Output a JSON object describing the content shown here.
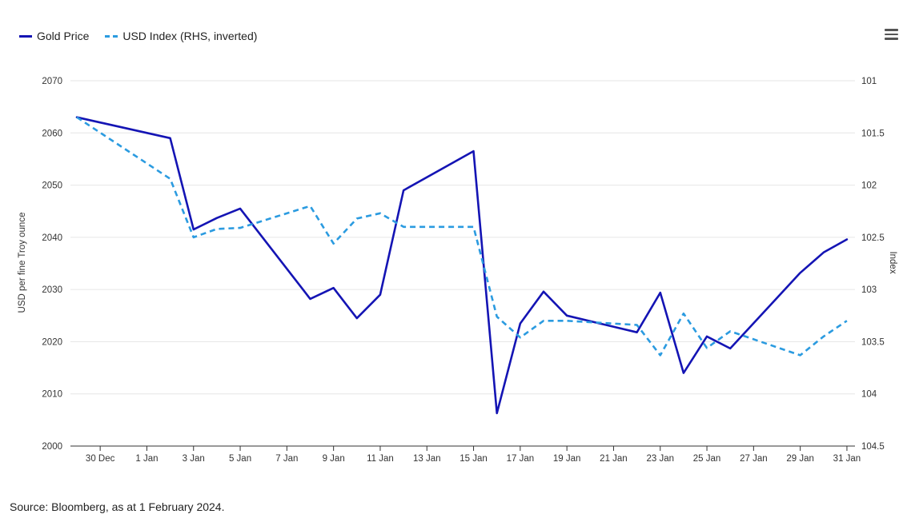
{
  "legend": {
    "gold_label": "Gold Price",
    "usd_label": "USD Index (RHS, inverted)"
  },
  "source_text": "Source: Bloomberg, as at 1 February 2024.",
  "colors": {
    "gold": "#1414b4",
    "usd": "#2b9be0",
    "grid": "#e6e6e6",
    "axis": "#333333"
  },
  "chart_data": {
    "type": "line",
    "x_tick_labels": [
      "30 Dec",
      "1 Jan",
      "3 Jan",
      "5 Jan",
      "7 Jan",
      "9 Jan",
      "11 Jan",
      "13 Jan",
      "15 Jan",
      "17 Jan",
      "19 Jan",
      "21 Jan",
      "23 Jan",
      "25 Jan",
      "27 Jan",
      "29 Jan",
      "31 Jan"
    ],
    "x_dates": [
      "2023-12-29",
      "2024-01-02",
      "2024-01-03",
      "2024-01-04",
      "2024-01-05",
      "2024-01-08",
      "2024-01-09",
      "2024-01-10",
      "2024-01-11",
      "2024-01-12",
      "2024-01-15",
      "2024-01-16",
      "2024-01-17",
      "2024-01-18",
      "2024-01-19",
      "2024-01-22",
      "2024-01-23",
      "2024-01-24",
      "2024-01-25",
      "2024-01-26",
      "2024-01-29",
      "2024-01-30",
      "2024-01-31"
    ],
    "y_left": {
      "label": "USD per fine Troy ounce",
      "range": [
        2000,
        2070
      ],
      "ticks": [
        2000,
        2010,
        2020,
        2030,
        2040,
        2050,
        2060,
        2070
      ]
    },
    "y_right": {
      "label": "Index",
      "range": [
        101,
        104.5
      ],
      "inverted": true,
      "ticks": [
        "101",
        "101.5",
        "102",
        "102.5",
        "103",
        "103.5",
        "104",
        "104.5"
      ]
    },
    "series": [
      {
        "name": "Gold Price",
        "axis": "left",
        "style": "solid",
        "values": [
          2063,
          2059,
          2041.5,
          2043.7,
          2045.5,
          2028.2,
          2030.3,
          2024.5,
          2029,
          2049,
          2056.5,
          2006.3,
          2023.5,
          2029.6,
          2025,
          2021.8,
          2029.4,
          2014,
          2021,
          2018.7,
          2033.2,
          2037.1,
          2039.6
        ]
      },
      {
        "name": "USD Index (RHS, inverted)",
        "axis": "right",
        "style": "dashed",
        "values": [
          101.35,
          101.94,
          102.5,
          102.42,
          102.41,
          102.2,
          102.56,
          102.32,
          102.27,
          102.4,
          102.4,
          103.26,
          103.46,
          103.3,
          103.3,
          103.34,
          103.63,
          103.23,
          103.56,
          103.4,
          103.63,
          103.45,
          103.3
        ]
      }
    ],
    "grid": true,
    "legend_position": "top-left"
  }
}
